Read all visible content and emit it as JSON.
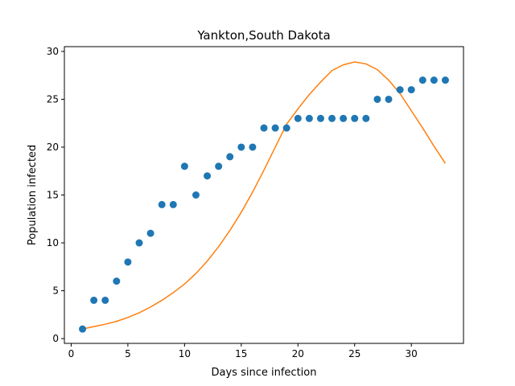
{
  "chart_data": {
    "type": "scatter",
    "title": "Yankton,South Dakota",
    "xlabel": "Days since infection",
    "ylabel": "Population infected",
    "xlim": [
      -0.6,
      34.6
    ],
    "ylim": [
      -0.5,
      30.5
    ],
    "xticks": [
      0,
      5,
      10,
      15,
      20,
      25,
      30
    ],
    "yticks": [
      0,
      5,
      10,
      15,
      20,
      25,
      30
    ],
    "grid": false,
    "series": [
      {
        "kind": "scatter",
        "color": "#1f77b4",
        "x": [
          1,
          2,
          3,
          4,
          5,
          6,
          7,
          8,
          9,
          10,
          11,
          12,
          13,
          14,
          15,
          16,
          17,
          18,
          19,
          20,
          21,
          22,
          23,
          24,
          25,
          26,
          27,
          28,
          29,
          30,
          31,
          32,
          33
        ],
        "y": [
          1,
          4,
          4,
          6,
          8,
          10,
          11,
          14,
          14,
          18,
          15,
          17,
          18,
          19,
          20,
          20,
          22,
          22,
          22,
          23,
          23,
          23,
          23,
          23,
          23,
          23,
          25,
          25,
          26,
          26,
          27,
          27,
          27
        ]
      },
      {
        "kind": "line",
        "color": "#ff7f0e",
        "x": [
          1,
          2,
          3,
          4,
          5,
          6,
          7,
          8,
          9,
          10,
          11,
          12,
          13,
          14,
          15,
          16,
          17,
          18,
          19,
          20,
          21,
          22,
          23,
          24,
          25,
          26,
          27,
          28,
          29,
          30,
          31,
          32,
          33
        ],
        "y": [
          1.0,
          1.25,
          1.5,
          1.8,
          2.2,
          2.7,
          3.3,
          4.0,
          4.8,
          5.7,
          6.8,
          8.1,
          9.6,
          11.3,
          13.2,
          15.3,
          17.6,
          20.0,
          22.4,
          24.0,
          25.5,
          26.8,
          28.0,
          28.6,
          28.9,
          28.7,
          28.1,
          27.0,
          25.6,
          23.8,
          22.0,
          20.1,
          18.3
        ]
      }
    ]
  }
}
